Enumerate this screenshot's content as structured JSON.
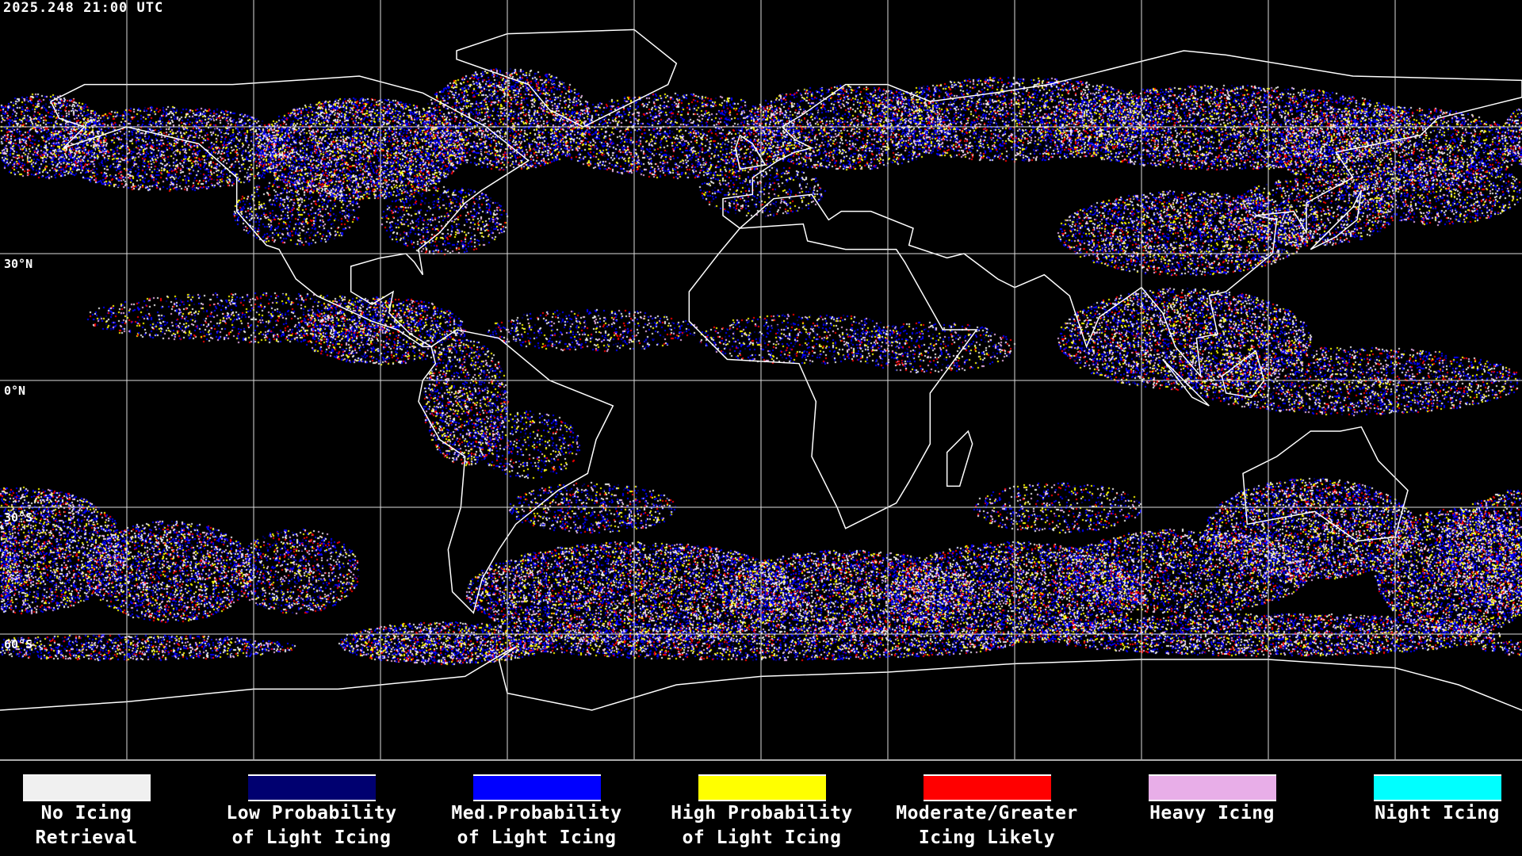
{
  "timestamp": "2025.248 21:00 UTC",
  "latitude_labels": [
    "30°N",
    "0°N",
    "30°S",
    "60°S"
  ],
  "legend": [
    {
      "line1": "No Icing",
      "line2": "Retrieval",
      "color": "#f0f0f0"
    },
    {
      "line1": "Low Probability",
      "line2": "of Light Icing",
      "color": "#000070"
    },
    {
      "line1": "Med.Probability",
      "line2": "of Light Icing",
      "color": "#0000ff"
    },
    {
      "line1": "High Probability",
      "line2": "of Light Icing",
      "color": "#ffff00"
    },
    {
      "line1": "Moderate/Greater",
      "line2": "Icing Likely",
      "color": "#ff0000"
    },
    {
      "line1": "Heavy Icing",
      "line2": "",
      "color": "#e8aee8"
    },
    {
      "line1": "Night Icing",
      "line2": "",
      "color": "#00ffff"
    }
  ]
}
